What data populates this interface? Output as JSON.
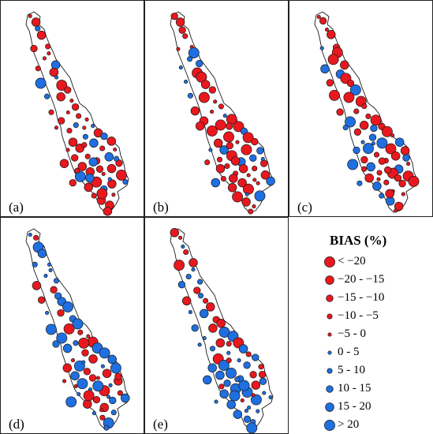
{
  "panels": [
    {
      "id": "a",
      "label": "(a)",
      "seed": 11,
      "red_bias": 0.78
    },
    {
      "id": "b",
      "label": "(b)",
      "seed": 23,
      "red_bias": 0.66
    },
    {
      "id": "c",
      "label": "(c)",
      "seed": 37,
      "red_bias": 0.62
    },
    {
      "id": "d",
      "label": "(d)",
      "seed": 41,
      "red_bias": 0.35
    },
    {
      "id": "e",
      "label": "(e)",
      "seed": 53,
      "red_bias": 0.33
    }
  ],
  "legend": {
    "title": "BIAS (%)",
    "classes": [
      {
        "label": "< −20",
        "color": "#e8181e",
        "size": 5
      },
      {
        "label": "−20 - −15",
        "color": "#e8181e",
        "size": 4
      },
      {
        "label": "−15 - −10",
        "color": "#e8181e",
        "size": 3
      },
      {
        "label": "−10 - −5",
        "color": "#e8181e",
        "size": 2
      },
      {
        "label": "−5 - 0",
        "color": "#e8181e",
        "size": 1
      },
      {
        "label": "0 - 5",
        "color": "#1f6fe0",
        "size": 1
      },
      {
        "label": "5 - 10",
        "color": "#1f6fe0",
        "size": 2
      },
      {
        "label": "10 - 15",
        "color": "#1f6fe0",
        "size": 3
      },
      {
        "label": "15 - 20",
        "color": "#1f6fe0",
        "size": 4
      },
      {
        "label": "> 20",
        "color": "#1f6fe0",
        "size": 5
      }
    ]
  },
  "colors": {
    "negative": "#e8181e",
    "positive": "#1f6fe0",
    "outline": "#1a1a1a",
    "border": "#222222"
  }
}
